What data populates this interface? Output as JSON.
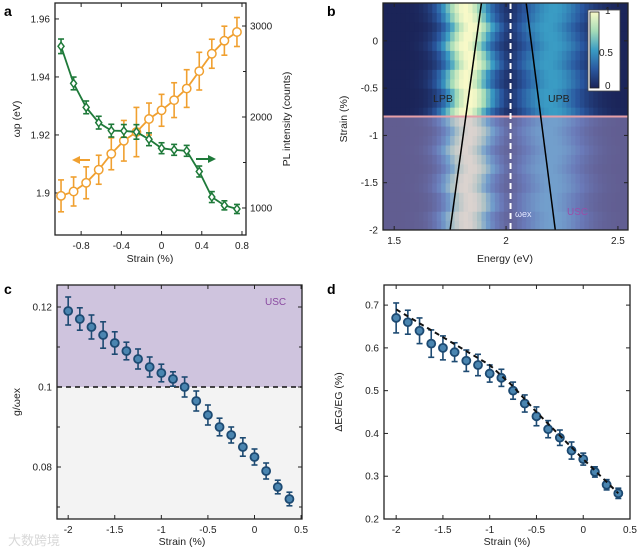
{
  "panels": {
    "a": {
      "label": "a",
      "xlabel": "Strain (%)",
      "ylabel": "ωp (eV)",
      "y2label": "PL intensity (counts)"
    },
    "b": {
      "label": "b",
      "xlabel": "Energy (eV)",
      "ylabel": "Strain (%)",
      "lpb": "LPB",
      "upb": "UPB",
      "wex": "ωex",
      "usc": "USC",
      "colorbar_ticks": [
        "1",
        "0.5",
        "0"
      ]
    },
    "c": {
      "label": "c",
      "xlabel": "Strain (%)",
      "ylabel": "g/ωex",
      "usc": "USC"
    },
    "d": {
      "label": "d",
      "xlabel": "Strain (%)",
      "ylabel": "ΔEG/EG (%)"
    }
  },
  "watermark": "大数跨境",
  "colors": {
    "orange": "#f0a030",
    "green": "#1f7a3a",
    "navy": "#1d4a72",
    "usc_band": "#cfc4de",
    "lower_band": "#f3f3f3",
    "pink": "#e6a0a8"
  },
  "chart_data": [
    {
      "id": "a",
      "type": "line",
      "xlabel": "Strain (%)",
      "ylabel": "ωp (eV)",
      "y2label": "PL intensity (counts)",
      "xlim": [
        -1.06,
        0.84
      ],
      "ylim": [
        1.8855,
        1.9655
      ],
      "y2lim": [
        703,
        3253
      ],
      "xticks": [
        -0.8,
        -0.4,
        0,
        0.4,
        0.8
      ],
      "xticklabels": [
        "-0.8",
        "-0.4",
        "0",
        "0.4",
        "0.8"
      ],
      "yticks": [
        1.9,
        1.92,
        1.94,
        1.96
      ],
      "yticklabels": [
        "1.9",
        "1.92",
        "1.94",
        "1.96"
      ],
      "y2ticks": [
        1000,
        2000,
        3000
      ],
      "y2ticklabels": [
        "1000",
        "2000",
        "3000"
      ],
      "x": [
        -1.0,
        -0.875,
        -0.75,
        -0.625,
        -0.5,
        -0.375,
        -0.25,
        -0.125,
        0,
        0.125,
        0.25,
        0.375,
        0.5,
        0.625,
        0.75
      ],
      "series": [
        {
          "name": "ωp",
          "axis": "left",
          "marker": "circle",
          "values": [
            1.899,
            1.9005,
            1.9035,
            1.908,
            1.9135,
            1.918,
            1.921,
            1.9255,
            1.9285,
            1.932,
            1.936,
            1.942,
            1.948,
            1.9525,
            1.9555
          ],
          "errors": [
            0.0055,
            0.005,
            0.0055,
            0.005,
            0.0055,
            0.007,
            0.0085,
            0.0055,
            0.0055,
            0.006,
            0.0065,
            0.0065,
            0.005,
            0.005,
            0.005
          ]
        },
        {
          "name": "PL intensity",
          "axis": "right",
          "marker": "diamond",
          "values": [
            2777,
            2369,
            2106,
            1938,
            1850,
            1847,
            1836,
            1755,
            1657,
            1639,
            1628,
            1401,
            1120,
            1029,
            989
          ],
          "errors": [
            80,
            70,
            70,
            70,
            70,
            70,
            80,
            70,
            60,
            60,
            60,
            60,
            60,
            50,
            50
          ]
        }
      ]
    },
    {
      "id": "b",
      "type": "heatmap",
      "xlabel": "Energy (eV)",
      "ylabel": "Strain (%)",
      "xlim": [
        1.45,
        2.545
      ],
      "ylim": [
        -2,
        0.4
      ],
      "xticks": [
        1.5,
        2,
        2.5
      ],
      "xticklabels": [
        "1.5",
        "2",
        "2.5"
      ],
      "yticks": [
        0,
        -0.5,
        -1,
        -1.5,
        -2
      ],
      "yticklabels": [
        "0",
        "-0.5",
        "-1",
        "-1.5",
        "-2"
      ],
      "colorbar": {
        "min": 0,
        "max": 1
      },
      "lpb_line": {
        "strain": [
          -2,
          0.4
        ],
        "energy": [
          1.75,
          1.89
        ]
      },
      "upb_line": {
        "strain": [
          -2,
          0.4
        ],
        "energy": [
          2.22,
          2.09
        ]
      },
      "omega_ex": 2.02,
      "usc_threshold_strain": -0.8,
      "lpb_peak_energy": 1.83,
      "upb_peak_energy": 2.2
    },
    {
      "id": "c",
      "type": "scatter",
      "xlabel": "Strain (%)",
      "ylabel": "g/ωex",
      "xlim": [
        -2.12,
        0.51
      ],
      "ylim": [
        0.067,
        0.1255
      ],
      "xticks": [
        -2,
        -1.5,
        -1,
        -0.5,
        0,
        0.5
      ],
      "xticklabels": [
        "-2",
        "-1.5",
        "-1",
        "-0.5",
        "0",
        "0.5"
      ],
      "yticks": [
        0.08,
        0.1,
        0.12
      ],
      "yticklabels": [
        "0.08",
        "0.1",
        "0.12"
      ],
      "threshold": 0.1,
      "x": [
        -2,
        -1.875,
        -1.75,
        -1.625,
        -1.5,
        -1.375,
        -1.25,
        -1.125,
        -1,
        -0.875,
        -0.75,
        -0.625,
        -0.5,
        -0.375,
        -0.25,
        -0.125,
        0,
        0.125,
        0.25,
        0.375
      ],
      "values": [
        0.119,
        0.117,
        0.115,
        0.113,
        0.111,
        0.109,
        0.107,
        0.105,
        0.1035,
        0.102,
        0.1,
        0.0965,
        0.093,
        0.09,
        0.088,
        0.085,
        0.0825,
        0.079,
        0.075,
        0.072
      ],
      "errors": [
        0.0035,
        0.0028,
        0.003,
        0.0033,
        0.0028,
        0.0022,
        0.0025,
        0.0025,
        0.0022,
        0.0018,
        0.0025,
        0.0025,
        0.0025,
        0.0022,
        0.002,
        0.0023,
        0.002,
        0.002,
        0.0017,
        0.0017
      ]
    },
    {
      "id": "d",
      "type": "scatter",
      "xlabel": "Strain (%)",
      "ylabel": "ΔEG/EG (%)",
      "xlim": [
        -2.13,
        0.5
      ],
      "ylim": [
        0.2,
        0.747
      ],
      "xticks": [
        -2,
        -1.5,
        -1,
        -0.5,
        0,
        0.5
      ],
      "xticklabels": [
        "-2",
        "-1.5",
        "-1",
        "-0.5",
        "0",
        "0.5"
      ],
      "yticks": [
        0.2,
        0.3,
        0.4,
        0.5,
        0.6,
        0.7
      ],
      "yticklabels": [
        "0.2",
        "0.3",
        "0.4",
        "0.5",
        "0.6",
        "0.7"
      ],
      "x": [
        -2,
        -1.875,
        -1.75,
        -1.625,
        -1.5,
        -1.375,
        -1.25,
        -1.125,
        -1,
        -0.875,
        -0.75,
        -0.625,
        -0.5,
        -0.375,
        -0.25,
        -0.125,
        0,
        0.125,
        0.25,
        0.375
      ],
      "values": [
        0.67,
        0.66,
        0.64,
        0.61,
        0.6,
        0.59,
        0.57,
        0.56,
        0.54,
        0.53,
        0.5,
        0.47,
        0.44,
        0.41,
        0.39,
        0.36,
        0.34,
        0.31,
        0.28,
        0.26
      ],
      "errors": [
        0.035,
        0.028,
        0.03,
        0.032,
        0.028,
        0.022,
        0.025,
        0.025,
        0.02,
        0.02,
        0.02,
        0.02,
        0.022,
        0.02,
        0.018,
        0.02,
        0.014,
        0.012,
        0.012,
        0.012
      ],
      "fit": {
        "x": [
          -2,
          -1.5,
          -1,
          -0.75,
          -0.5,
          -0.25,
          0,
          0.375
        ],
        "y": [
          0.69,
          0.625,
          0.56,
          0.51,
          0.45,
          0.395,
          0.34,
          0.26
        ]
      }
    }
  ]
}
